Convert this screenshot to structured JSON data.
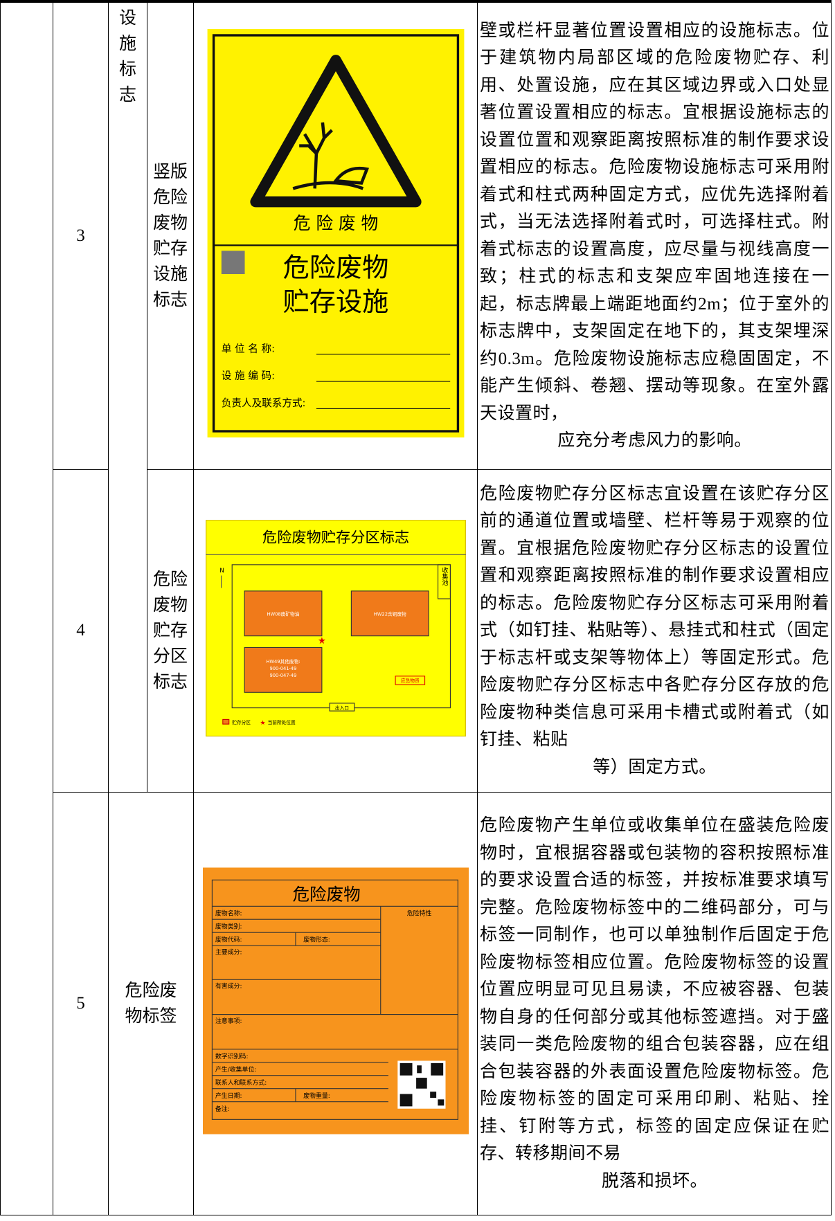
{
  "table": {
    "rows": [
      {
        "number": "3",
        "category": "设施标志",
        "name": "竖版危险废物贮存设施标志",
        "description": "壁或栏杆显著位置设置相应的设施标志。位于建筑物内局部区域的危险废物贮存、利用、处置设施，应在其区域边界或入口处显著位置设置相应的标志。宜根据设施标志的设置位置和观察距离按照标准的制作要求设置相应的标志。危险废物设施标志可采用附着式和柱式两种固定方式，应优先选择附着式，当无法选择附着式时，可选择柱式。附着式标志的设置高度，应尽量与视线高度一致；柱式的标志和支架应牢固地连接在一起，标志牌最上端距地面约2m；位于室外的标志牌中，支架固定在地下的，其支架埋深约0.3m。危险废物设施标志应稳固固定，不能产生倾斜、卷翘、摆动等现象。在室外露天设置时，",
        "description_end": "应充分考虑风力的影响。",
        "sign": {
          "warning": "危 险 废 物",
          "title1": "危险废物",
          "title2": "贮存设施",
          "field1": "单 位 名 称:",
          "field2": "设 施 编 码:",
          "field3": "负责人及联系方式:"
        }
      },
      {
        "number": "4",
        "name": "危险废物贮存分区标志",
        "description": "危险废物贮存分区标志宜设置在该贮存分区前的通道位置或墙壁、栏杆等易于观察的位置。宜根据危险废物贮存分区标志的设置位置和观察距离按照标准的制作要求设置相应的标志。危险废物贮存分区标志可采用附着式（如钉挂、粘贴等）、悬挂式和柱式（固定于标志杆或支架等物体上）等固定形式。危险废物贮存分区标志中各贮存分区存放的危险废物种类信息可采用卡槽式或附着式（如钉挂、粘贴",
        "description_end": "等）固定方式。",
        "sign": {
          "title": "危险废物贮存分区标志",
          "north": "N",
          "zone1": "HW08废矿物油",
          "zone2": "HW22含铜废物",
          "zone3a": "HW49其他废物:",
          "zone3b": "900-041-49",
          "zone3c": "900-047-49",
          "pool": "收集池",
          "emergency": "应急物资",
          "entrance": "出入口",
          "legend1": "贮存分区",
          "legend2": "当前所处位置"
        }
      },
      {
        "number": "5",
        "category": "危险废物标签",
        "description": "危险废物产生单位或收集单位在盛装危险废物时，宜根据容器或包装物的容积按照标准的要求设置合适的标签，并按标准要求填写完整。危险废物标签中的二维码部分，可与标签一同制作，也可以单独制作后固定于危险废物标签相应位置。危险废物标签的设置位置应明显可见且易读，不应被容器、包装物自身的任何部分或其他标签遮挡。对于盛装同一类危险废物的组合包装容器，应在组合包装容器的外表面设置危险废物标签。危险废物标签的固定可采用印刷、粘贴、拴挂、钉附等方式，标签的固定应保证在贮存、转移期间不易",
        "description_end": "脱落和损坏。",
        "sign": {
          "title": "危险废物",
          "f1": "废物名称:",
          "f2": "危险特性",
          "f3": "废物类别:",
          "f4": "废物代码:",
          "f5": "废物形态:",
          "f6": "主要成分:",
          "f7": "有害成分:",
          "f8": "注意事项:",
          "f9": "数字识别码:",
          "f10": "产生/收集单位:",
          "f11": "联系人和联系方式:",
          "f12": "产生日期:",
          "f13": "废物重量:",
          "f14": "备注:"
        }
      }
    ]
  }
}
